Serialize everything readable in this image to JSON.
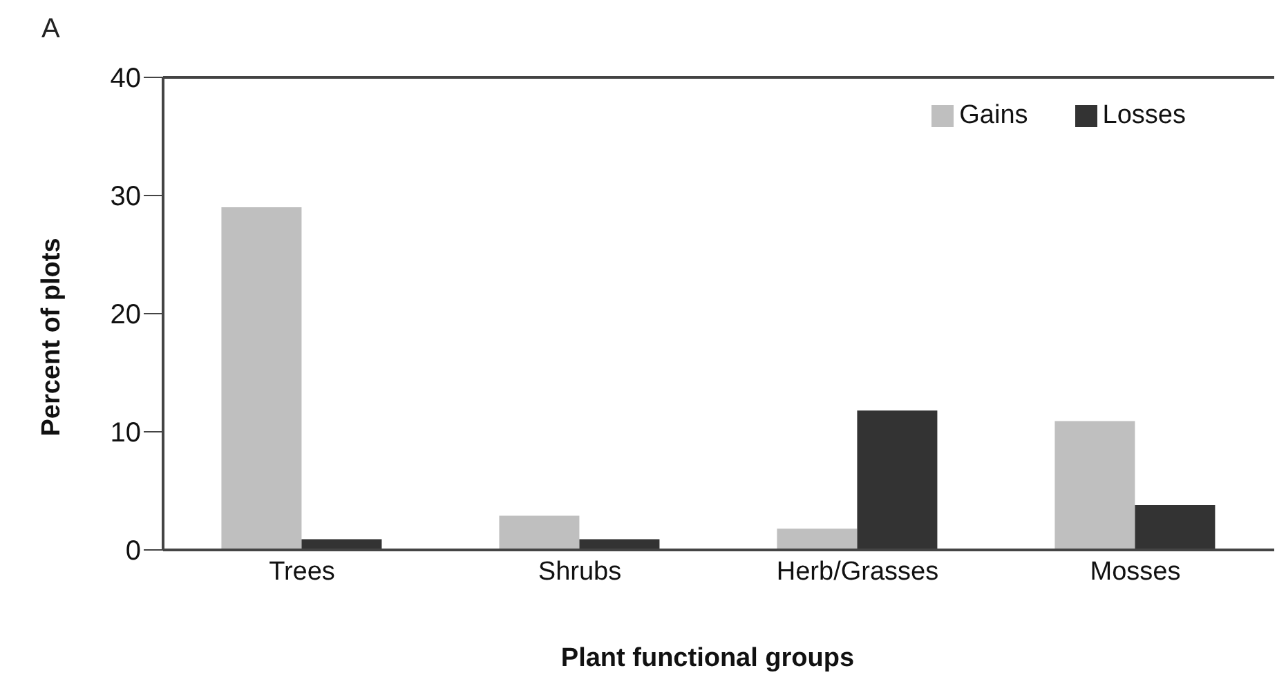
{
  "chart_data": {
    "type": "bar",
    "title": "A",
    "xlabel": "Plant functional groups",
    "ylabel": "Percent of plots",
    "categories": [
      "Trees",
      "Shrubs",
      "Herb/Grasses",
      "Mosses"
    ],
    "series": [
      {
        "name": "Gains",
        "color": "#bfbfbf",
        "values": [
          29,
          2.9,
          1.8,
          10.9
        ]
      },
      {
        "name": "Losses",
        "color": "#333333",
        "values": [
          0.9,
          0.9,
          11.8,
          3.8
        ]
      }
    ],
    "ylim": [
      0,
      40
    ],
    "yticks": [
      0,
      10,
      20,
      30,
      40
    ],
    "grid": false,
    "legend": "top right"
  }
}
